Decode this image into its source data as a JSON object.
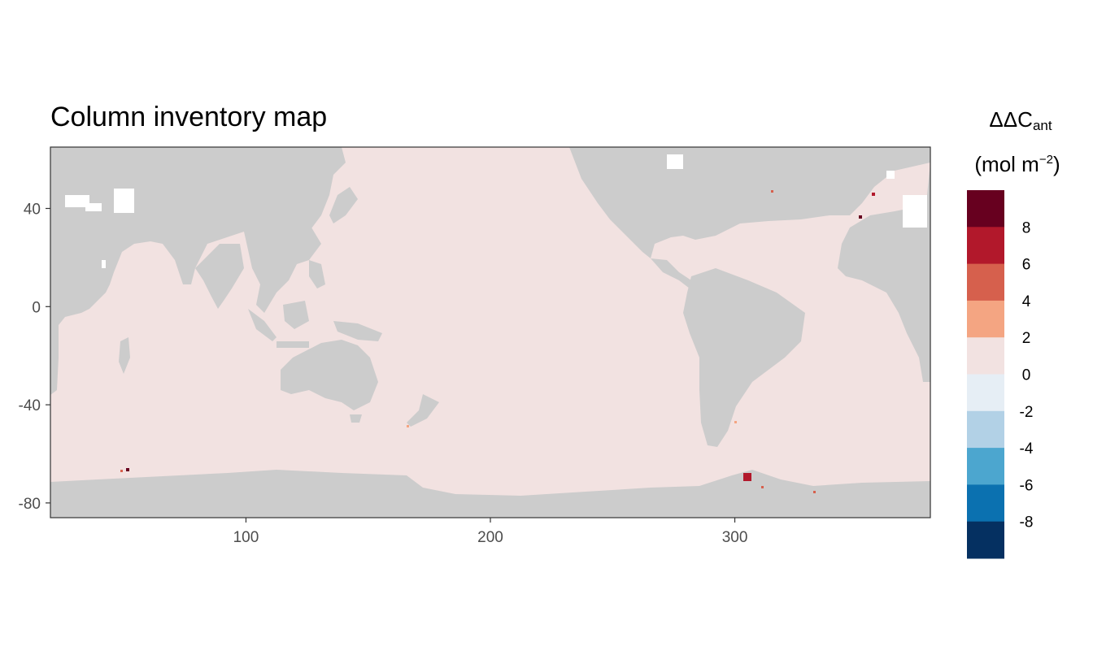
{
  "title": "Column inventory map",
  "legend": {
    "title_main": "ΔΔC",
    "title_sub": "ant",
    "unit_prefix": "(mol m",
    "unit_sup": "−2",
    "unit_suffix": ")",
    "colors": [
      "#67001f",
      "#b2182b",
      "#d6604d",
      "#f4a582",
      "#f2e2e1",
      "#e6eef5",
      "#b2d1e6",
      "#4ca6cf",
      "#0b71b0",
      "#053061"
    ],
    "labels": [
      "8",
      "6",
      "4",
      "2",
      "0",
      "-2",
      "-4",
      "-6",
      "-8"
    ]
  },
  "chart_data": {
    "type": "heatmap",
    "title": "Column inventory map",
    "xlabel": "",
    "ylabel": "",
    "xlim": [
      20,
      380
    ],
    "ylim": [
      -86,
      65
    ],
    "x_ticks": [
      100,
      200,
      300
    ],
    "y_ticks": [
      40,
      0,
      -40,
      -80
    ],
    "legend_title": "ΔΔCant (mol m−2)",
    "legend_breaks": [
      8,
      6,
      4,
      2,
      0,
      -2,
      -4,
      -6,
      -8
    ],
    "ocean_value_bin": "0 to 2",
    "land_color": "#cccccc",
    "ocean_color": "#f2e2e1",
    "legend_position": "right",
    "grid": false
  }
}
